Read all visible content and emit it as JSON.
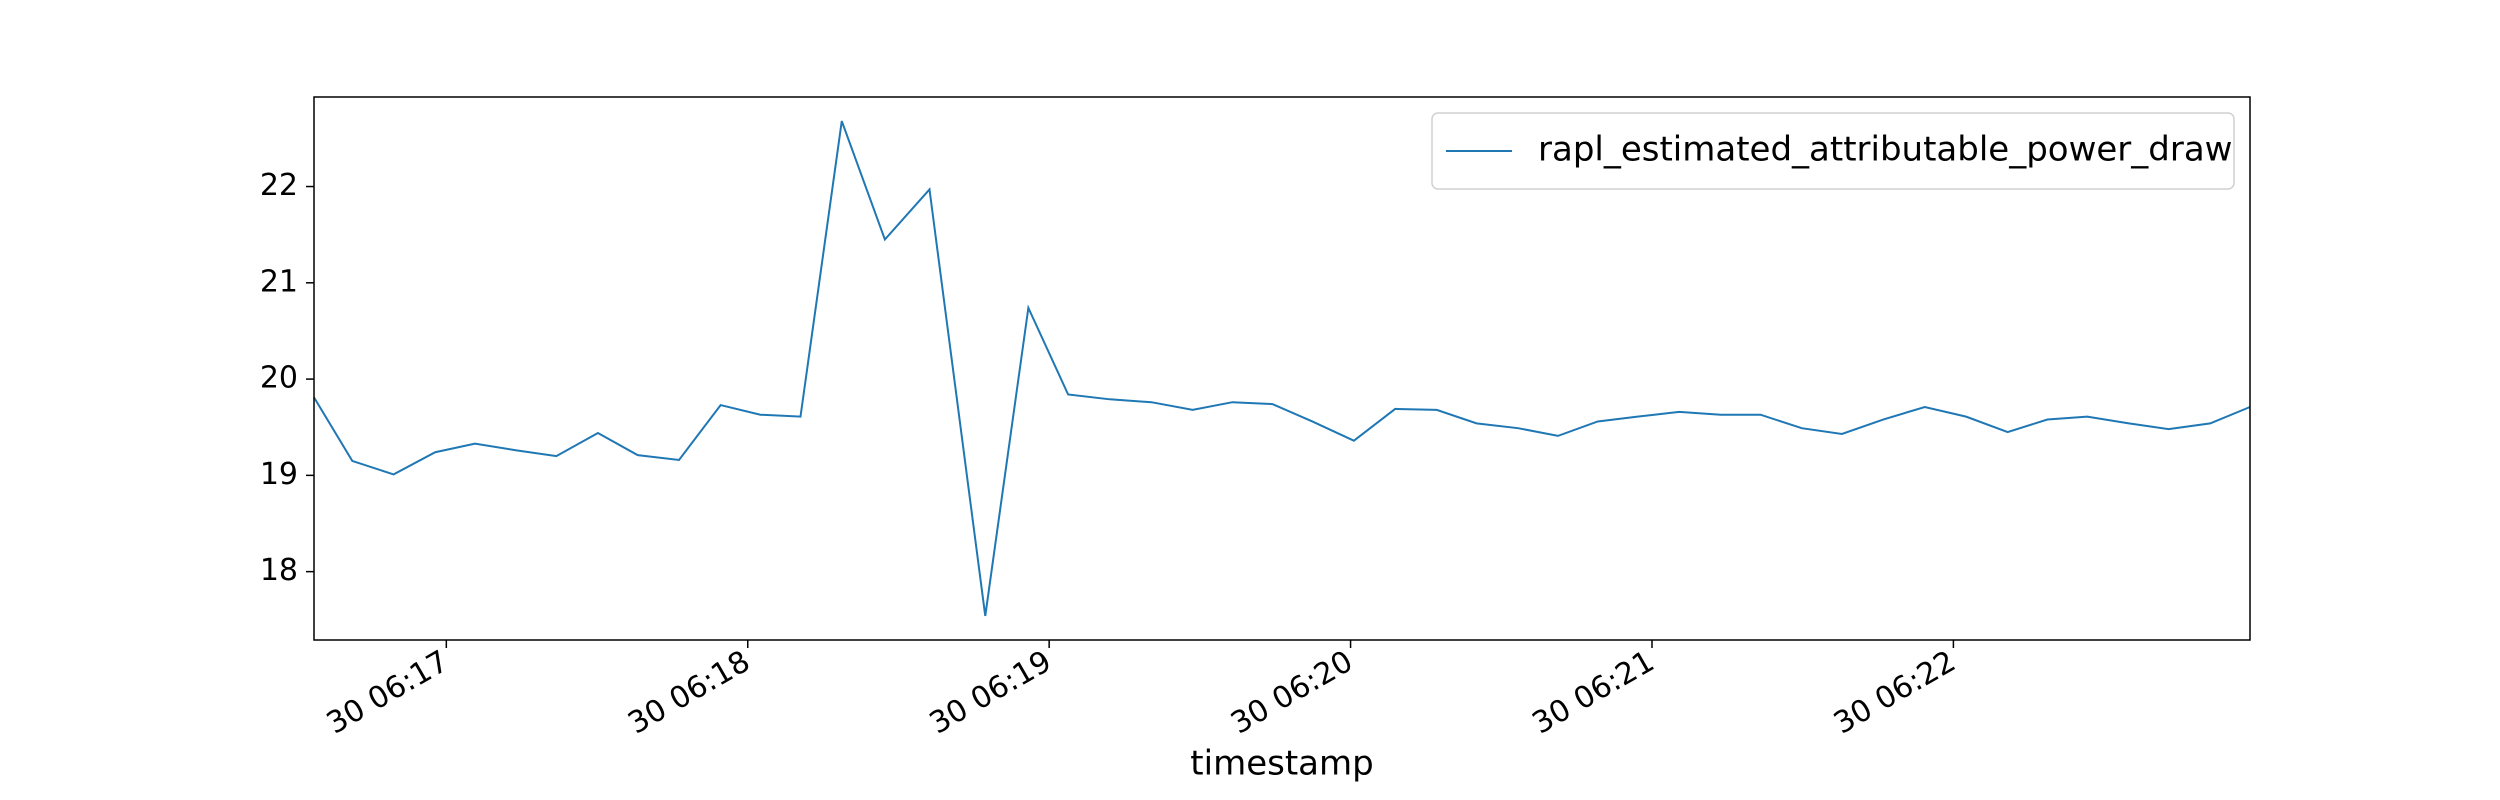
{
  "chart_data": {
    "type": "line",
    "xlabel": "timestamp",
    "x": [
      16.561,
      16.688,
      16.825,
      16.963,
      17.095,
      17.233,
      17.365,
      17.503,
      17.635,
      17.772,
      17.91,
      18.042,
      18.175,
      18.312,
      18.455,
      18.603,
      18.788,
      18.931,
      19.063,
      19.201,
      19.339,
      19.476,
      19.608,
      19.741,
      19.873,
      20.011,
      20.148,
      20.286,
      20.418,
      20.556,
      20.688,
      20.82,
      20.952,
      21.09,
      21.228,
      21.36,
      21.497,
      21.63,
      21.767,
      21.905,
      22.042,
      22.18,
      22.312,
      22.444,
      22.582,
      22.714,
      22.852,
      22.984
    ],
    "series": [
      {
        "name": "rapl_estimated_attributable_power_draw",
        "color": "#1f77b4",
        "values": [
          19.81,
          19.15,
          19.01,
          19.24,
          19.33,
          19.26,
          19.2,
          19.44,
          19.21,
          19.16,
          19.73,
          19.63,
          19.61,
          22.68,
          21.45,
          21.97,
          17.54,
          20.74,
          19.84,
          19.79,
          19.76,
          19.68,
          19.76,
          19.74,
          19.56,
          19.36,
          19.69,
          19.68,
          19.54,
          19.49,
          19.41,
          19.56,
          19.61,
          19.66,
          19.63,
          19.63,
          19.49,
          19.43,
          19.58,
          19.71,
          19.61,
          19.45,
          19.58,
          19.61,
          19.54,
          19.48,
          19.54,
          19.71
        ]
      }
    ],
    "xlim": [
      16.561,
      22.984
    ],
    "xticks": [
      {
        "value": 17,
        "label": "30 06:17"
      },
      {
        "value": 18,
        "label": "30 06:18"
      },
      {
        "value": 19,
        "label": "30 06:19"
      },
      {
        "value": 20,
        "label": "30 06:20"
      },
      {
        "value": 21,
        "label": "30 06:21"
      },
      {
        "value": 22,
        "label": "30 06:22"
      }
    ],
    "ylim": [
      17.29,
      22.93
    ],
    "yticks": [
      18,
      19,
      20,
      21,
      22
    ],
    "grid": false,
    "legend": "upper right"
  }
}
